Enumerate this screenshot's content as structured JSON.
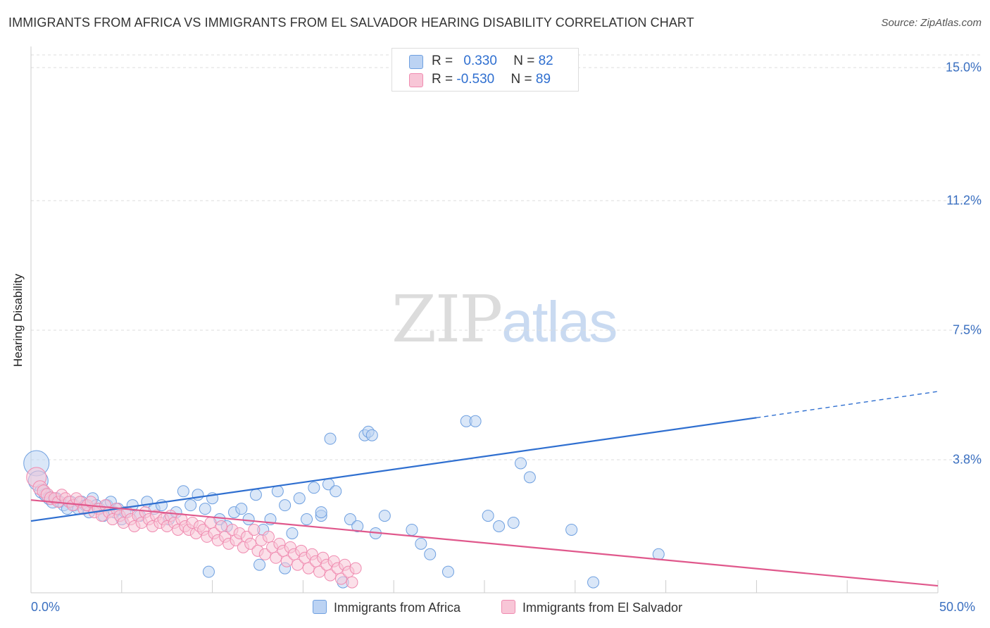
{
  "title": "IMMIGRANTS FROM AFRICA VS IMMIGRANTS FROM EL SALVADOR HEARING DISABILITY CORRELATION CHART",
  "source": "Source: ZipAtlas.com",
  "watermark": {
    "zip": "ZIP",
    "atlas": "atlas"
  },
  "colors": {
    "africa": "#6fa0e0",
    "africa_fill": "#bcd3f3",
    "africa_line": "#2f6fd0",
    "salvador": "#f08bb0",
    "salvador_fill": "#f8c6d7",
    "salvador_line": "#e0588c",
    "tick_label": "#3a6fc0"
  },
  "stats": [
    {
      "r_label": "R = ",
      "r_value": "0.330",
      "n_label": "N = ",
      "n_value": "82"
    },
    {
      "r_label": "R = ",
      "r_value": "-0.530",
      "n_label": "N = ",
      "n_value": "89"
    }
  ],
  "chart_data": {
    "type": "scatter",
    "title": "IMMIGRANTS FROM AFRICA VS IMMIGRANTS FROM EL SALVADOR HEARING DISABILITY CORRELATION CHART",
    "xlabel": "",
    "ylabel": "Hearing Disability",
    "xlim": [
      0,
      50
    ],
    "ylim": [
      0,
      15.0
    ],
    "x_tick_labels": [
      "0.0%",
      "50.0%"
    ],
    "y_ticks": [
      3.8,
      7.5,
      11.2,
      15.0
    ],
    "y_tick_labels": [
      "3.8%",
      "7.5%",
      "11.2%",
      "15.0%"
    ],
    "grid": true,
    "legend_position": "bottom",
    "series": [
      {
        "name": "Immigrants from Africa",
        "points": [
          [
            0.3,
            3.7,
            18
          ],
          [
            0.4,
            3.2,
            14
          ],
          [
            0.6,
            2.9,
            10
          ],
          [
            0.8,
            2.8,
            9
          ],
          [
            1.0,
            2.7,
            9
          ],
          [
            1.2,
            2.6,
            9
          ],
          [
            1.4,
            2.7,
            8
          ],
          [
            1.6,
            2.6,
            8
          ],
          [
            1.8,
            2.5,
            8
          ],
          [
            2.0,
            2.4,
            8
          ],
          [
            2.2,
            2.6,
            8
          ],
          [
            2.4,
            2.5,
            8
          ],
          [
            2.6,
            2.4,
            8
          ],
          [
            2.8,
            2.6,
            8
          ],
          [
            3.0,
            2.5,
            8
          ],
          [
            3.2,
            2.3,
            8
          ],
          [
            3.4,
            2.7,
            8
          ],
          [
            3.6,
            2.5,
            8
          ],
          [
            3.8,
            2.4,
            8
          ],
          [
            4.0,
            2.2,
            8
          ],
          [
            4.2,
            2.5,
            8
          ],
          [
            4.4,
            2.6,
            8
          ],
          [
            4.6,
            2.3,
            8
          ],
          [
            4.8,
            2.4,
            8
          ],
          [
            5.0,
            2.1,
            8
          ],
          [
            5.2,
            2.3,
            8
          ],
          [
            5.6,
            2.5,
            8
          ],
          [
            6.0,
            2.2,
            8
          ],
          [
            6.4,
            2.6,
            8
          ],
          [
            6.8,
            2.4,
            8
          ],
          [
            7.2,
            2.5,
            8
          ],
          [
            7.6,
            2.1,
            8
          ],
          [
            8.0,
            2.3,
            8
          ],
          [
            8.4,
            2.9,
            8
          ],
          [
            8.8,
            2.5,
            8
          ],
          [
            9.2,
            2.8,
            8
          ],
          [
            9.6,
            2.4,
            8
          ],
          [
            10.0,
            2.7,
            8
          ],
          [
            10.4,
            2.1,
            8
          ],
          [
            10.8,
            1.9,
            8
          ],
          [
            11.2,
            2.3,
            8
          ],
          [
            11.6,
            2.4,
            8
          ],
          [
            12.0,
            2.1,
            8
          ],
          [
            12.4,
            2.8,
            8
          ],
          [
            12.8,
            1.8,
            8
          ],
          [
            13.2,
            2.1,
            8
          ],
          [
            13.6,
            2.9,
            8
          ],
          [
            14.0,
            2.5,
            8
          ],
          [
            14.4,
            1.7,
            8
          ],
          [
            14.8,
            2.7,
            8
          ],
          [
            15.2,
            2.1,
            8
          ],
          [
            15.6,
            3.0,
            8
          ],
          [
            16.0,
            2.2,
            8
          ],
          [
            16.4,
            3.1,
            8
          ],
          [
            16.8,
            2.9,
            8
          ],
          [
            17.2,
            0.3,
            8
          ],
          [
            17.6,
            2.1,
            8
          ],
          [
            18.0,
            1.9,
            8
          ],
          [
            18.4,
            4.5,
            8
          ],
          [
            18.6,
            4.6,
            8
          ],
          [
            18.8,
            4.5,
            8
          ],
          [
            19.0,
            1.7,
            8
          ],
          [
            19.5,
            2.2,
            8
          ],
          [
            21.0,
            1.8,
            8
          ],
          [
            21.5,
            1.4,
            8
          ],
          [
            22.0,
            1.1,
            8
          ],
          [
            23.0,
            0.6,
            8
          ],
          [
            24.0,
            4.9,
            8
          ],
          [
            24.5,
            4.9,
            8
          ],
          [
            25.2,
            2.2,
            8
          ],
          [
            25.8,
            1.9,
            8
          ],
          [
            26.6,
            2.0,
            8
          ],
          [
            27.0,
            3.7,
            8
          ],
          [
            27.5,
            3.3,
            8
          ],
          [
            29.8,
            1.8,
            8
          ],
          [
            31.0,
            0.3,
            8
          ],
          [
            34.6,
            1.1,
            8
          ],
          [
            14.0,
            0.7,
            8
          ],
          [
            16.5,
            4.4,
            8
          ],
          [
            16.0,
            2.3,
            8
          ],
          [
            9.8,
            0.6,
            8
          ],
          [
            12.6,
            0.8,
            8
          ]
        ]
      },
      {
        "name": "Immigrants from El Salvador",
        "points": [
          [
            0.3,
            3.3,
            14
          ],
          [
            0.5,
            3.0,
            10
          ],
          [
            0.7,
            2.9,
            9
          ],
          [
            0.9,
            2.8,
            9
          ],
          [
            1.1,
            2.7,
            9
          ],
          [
            1.3,
            2.7,
            8
          ],
          [
            1.5,
            2.6,
            8
          ],
          [
            1.7,
            2.8,
            8
          ],
          [
            1.9,
            2.7,
            8
          ],
          [
            2.1,
            2.6,
            8
          ],
          [
            2.3,
            2.5,
            8
          ],
          [
            2.5,
            2.7,
            8
          ],
          [
            2.7,
            2.6,
            8
          ],
          [
            2.9,
            2.4,
            8
          ],
          [
            3.1,
            2.5,
            8
          ],
          [
            3.3,
            2.6,
            8
          ],
          [
            3.5,
            2.3,
            8
          ],
          [
            3.7,
            2.4,
            8
          ],
          [
            3.9,
            2.2,
            8
          ],
          [
            4.1,
            2.5,
            8
          ],
          [
            4.3,
            2.3,
            8
          ],
          [
            4.5,
            2.1,
            8
          ],
          [
            4.7,
            2.4,
            8
          ],
          [
            4.9,
            2.2,
            8
          ],
          [
            5.1,
            2.0,
            8
          ],
          [
            5.3,
            2.3,
            8
          ],
          [
            5.5,
            2.1,
            8
          ],
          [
            5.7,
            1.9,
            8
          ],
          [
            5.9,
            2.2,
            8
          ],
          [
            6.1,
            2.0,
            8
          ],
          [
            6.3,
            2.3,
            8
          ],
          [
            6.5,
            2.1,
            8
          ],
          [
            6.7,
            1.9,
            8
          ],
          [
            6.9,
            2.2,
            8
          ],
          [
            7.1,
            2.0,
            8
          ],
          [
            7.3,
            2.1,
            8
          ],
          [
            7.5,
            1.9,
            8
          ],
          [
            7.7,
            2.2,
            8
          ],
          [
            7.9,
            2.0,
            8
          ],
          [
            8.1,
            1.8,
            8
          ],
          [
            8.3,
            2.1,
            8
          ],
          [
            8.5,
            1.9,
            8
          ],
          [
            8.7,
            1.8,
            8
          ],
          [
            8.9,
            2.0,
            8
          ],
          [
            9.1,
            1.7,
            8
          ],
          [
            9.3,
            1.9,
            8
          ],
          [
            9.5,
            1.8,
            8
          ],
          [
            9.7,
            1.6,
            8
          ],
          [
            9.9,
            2.0,
            8
          ],
          [
            10.1,
            1.7,
            8
          ],
          [
            10.3,
            1.5,
            8
          ],
          [
            10.5,
            1.9,
            8
          ],
          [
            10.7,
            1.6,
            8
          ],
          [
            10.9,
            1.4,
            8
          ],
          [
            11.1,
            1.8,
            8
          ],
          [
            11.3,
            1.5,
            8
          ],
          [
            11.5,
            1.7,
            8
          ],
          [
            11.7,
            1.3,
            8
          ],
          [
            11.9,
            1.6,
            8
          ],
          [
            12.1,
            1.4,
            8
          ],
          [
            12.3,
            1.8,
            8
          ],
          [
            12.5,
            1.2,
            8
          ],
          [
            12.7,
            1.5,
            8
          ],
          [
            12.9,
            1.1,
            8
          ],
          [
            13.1,
            1.6,
            8
          ],
          [
            13.3,
            1.3,
            8
          ],
          [
            13.5,
            1.0,
            8
          ],
          [
            13.7,
            1.4,
            8
          ],
          [
            13.9,
            1.2,
            8
          ],
          [
            14.1,
            0.9,
            8
          ],
          [
            14.3,
            1.3,
            8
          ],
          [
            14.5,
            1.1,
            8
          ],
          [
            14.7,
            0.8,
            8
          ],
          [
            14.9,
            1.2,
            8
          ],
          [
            15.1,
            1.0,
            8
          ],
          [
            15.3,
            0.7,
            8
          ],
          [
            15.5,
            1.1,
            8
          ],
          [
            15.7,
            0.9,
            8
          ],
          [
            15.9,
            0.6,
            8
          ],
          [
            16.1,
            1.0,
            8
          ],
          [
            16.3,
            0.8,
            8
          ],
          [
            16.5,
            0.5,
            8
          ],
          [
            16.7,
            0.9,
            8
          ],
          [
            16.9,
            0.7,
            8
          ],
          [
            17.1,
            0.4,
            8
          ],
          [
            17.3,
            0.8,
            8
          ],
          [
            17.5,
            0.6,
            8
          ],
          [
            17.7,
            0.3,
            8
          ],
          [
            17.9,
            0.7,
            8
          ]
        ]
      }
    ],
    "trend_lines": [
      {
        "series": "Immigrants from Africa",
        "x0": 0,
        "y0": 2.05,
        "x1": 40,
        "y1": 5.0,
        "dashed_to_x": 50,
        "dashed_to_y": 5.75
      },
      {
        "series": "Immigrants from El Salvador",
        "x0": 0,
        "y0": 2.65,
        "x1": 50,
        "y1": 0.2
      }
    ]
  }
}
